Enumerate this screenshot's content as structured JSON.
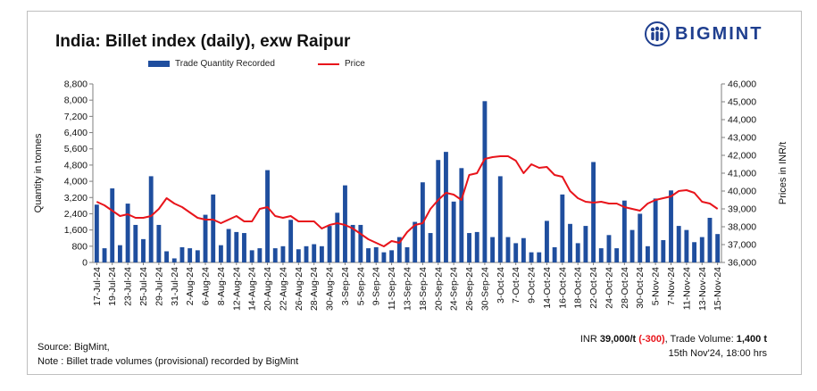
{
  "title": "India: Billet index (daily), exw Raipur",
  "logo": {
    "text": "BIGMINT",
    "colors": {
      "blue": "#1f3f8f"
    }
  },
  "source": "Source: BigMint,",
  "note": "Note : Billet trade volumes (provisional) recorded by BigMint",
  "summary": {
    "prefix": "INR ",
    "price": "39,000/t",
    "change": "(-300)",
    "volume_label": ", Trade Volume: ",
    "volume": "1,400 t",
    "timestamp": "15th Nov'24, 18:00 hrs"
  },
  "chart_data": {
    "type": "bar",
    "x_tick_labels": [
      "17-Jul-24",
      "19-Jul-24",
      "23-Jul-24",
      "25-Jul-24",
      "29-Jul-24",
      "31-Jul-24",
      "2-Aug-24",
      "6-Aug-24",
      "8-Aug-24",
      "12-Aug-24",
      "14-Aug-24",
      "20-Aug-24",
      "22-Aug-24",
      "26-Aug-24",
      "28-Aug-24",
      "30-Aug-24",
      "3-Sep-24",
      "5-Sep-24",
      "9-Sep-24",
      "11-Sep-24",
      "13-Sep-24",
      "18-Sep-24",
      "20-Sep-24",
      "24-Sep-24",
      "26-Sep-24",
      "30-Sep-24",
      "3-Oct-24",
      "7-Oct-24",
      "9-Oct-24",
      "14-Oct-24",
      "16-Oct-24",
      "18-Oct-24",
      "22-Oct-24",
      "24-Oct-24",
      "28-Oct-24",
      "30-Oct-24",
      "5-Nov-24",
      "7-Nov-24",
      "11-Nov-24",
      "13-Nov-24",
      "15-Nov-24"
    ],
    "series": [
      {
        "name": "Trade Quantity Recorded",
        "type": "bar",
        "axis": "left",
        "color": "#1f4e9e",
        "values": [
          2850,
          700,
          3650,
          850,
          2900,
          1850,
          1150,
          4250,
          1850,
          550,
          200,
          750,
          700,
          600,
          2350,
          3350,
          850,
          1650,
          1500,
          1450,
          600,
          700,
          4550,
          700,
          800,
          2100,
          650,
          800,
          900,
          800,
          1800,
          2450,
          3800,
          1850,
          1850,
          700,
          750,
          500,
          600,
          1250,
          750,
          2000,
          3950,
          1450,
          5050,
          5450,
          3000,
          4650,
          1450,
          1500,
          7950,
          1250,
          4250,
          1250,
          950,
          1200,
          500,
          500,
          2050,
          750,
          3350,
          1900,
          950,
          1800,
          4950,
          700,
          1350,
          700,
          3050,
          1600,
          2400,
          800,
          3150,
          1100,
          3550,
          1800,
          1600,
          1000,
          1250,
          2200,
          1400
        ]
      },
      {
        "name": "Price",
        "type": "line",
        "axis": "right",
        "color": "#e8141b",
        "values": [
          39400,
          39200,
          38900,
          38600,
          38700,
          38500,
          38500,
          38600,
          39000,
          39600,
          39300,
          39100,
          38800,
          38500,
          38400,
          38400,
          38200,
          38400,
          38600,
          38300,
          38300,
          39000,
          39100,
          38600,
          38500,
          38600,
          38300,
          38300,
          38300,
          37900,
          38100,
          38200,
          38100,
          37900,
          37600,
          37300,
          37100,
          36900,
          37200,
          37100,
          37700,
          38100,
          38200,
          39000,
          39500,
          39900,
          39800,
          39500,
          40900,
          41000,
          41800,
          41900,
          41950,
          41950,
          41700,
          41000,
          41500,
          41300,
          41350,
          40900,
          40800,
          40000,
          39600,
          39400,
          39350,
          39400,
          39300,
          39300,
          39100,
          39000,
          38900,
          39300,
          39500,
          39600,
          39700,
          40000,
          40050,
          39900,
          39400,
          39300,
          39000
        ]
      }
    ],
    "y_left": {
      "label": "Quantity in tonnes",
      "min": 0,
      "max": 8800,
      "step": 800
    },
    "y_right": {
      "label": "Prices in INR/t",
      "min": 36000,
      "max": 46000,
      "step": 1000
    },
    "grid": false,
    "legend": "top-left"
  }
}
